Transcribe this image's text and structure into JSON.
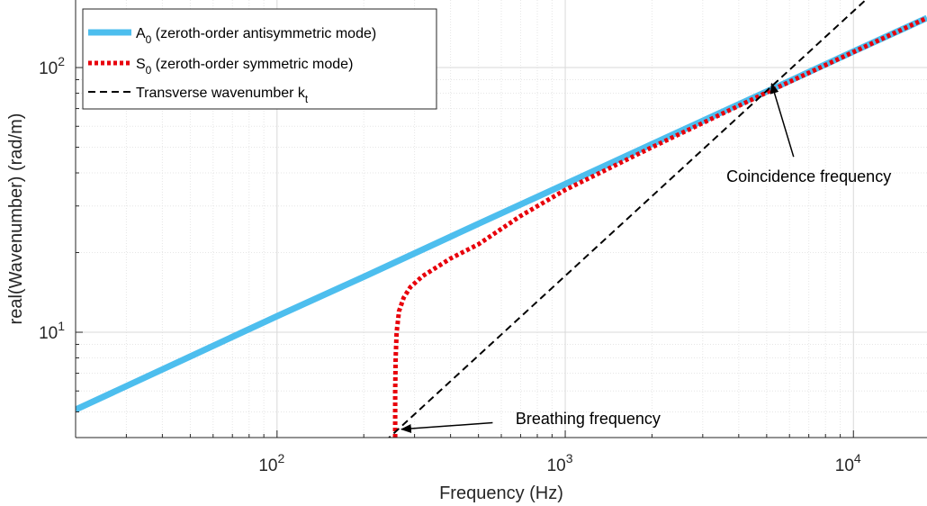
{
  "chart_data": {
    "type": "line",
    "xscale": "log",
    "yscale": "log",
    "xlim": [
      20,
      18000
    ],
    "ylim": [
      4,
      180
    ],
    "xlabel": "Frequency (Hz)",
    "ylabel": "real(Wavenumber) (rad/m)",
    "xticks": [
      {
        "value": 100,
        "base": "10",
        "exp": "2"
      },
      {
        "value": 1000,
        "base": "10",
        "exp": "3"
      },
      {
        "value": 10000,
        "base": "10",
        "exp": "4"
      }
    ],
    "yticks": [
      {
        "value": 10,
        "base": "10",
        "exp": "1"
      },
      {
        "value": 100,
        "base": "10",
        "exp": "2"
      }
    ],
    "grid": true,
    "minor_grid": true,
    "legend_position": "top-left",
    "series": [
      {
        "name_main": "A",
        "name_sub": "0",
        "name_rest": " (zeroth-order antisymmetric mode)",
        "color": "#4DBEEE",
        "style": "solid",
        "x": [
          20,
          50,
          100,
          200,
          500,
          1000,
          2000,
          5000,
          10000,
          18000
        ],
        "y": [
          5.1,
          8.1,
          11.5,
          16.2,
          25.7,
          36.3,
          51.4,
          81.2,
          115,
          154
        ]
      },
      {
        "name_main": "S",
        "name_sub": "0",
        "name_rest": " (zeroth-order symmetric mode)",
        "color": "#E8000B",
        "style": "dotted",
        "x": [
          257,
          257,
          258,
          260,
          265,
          275,
          290,
          320,
          400,
          500,
          700,
          1000,
          2000,
          5000,
          10000,
          18000
        ],
        "y": [
          4.0,
          6.0,
          8.0,
          10.0,
          12.0,
          13.5,
          14.8,
          16.3,
          19.0,
          21.5,
          27.5,
          34.5,
          50.0,
          80.5,
          114.5,
          154
        ]
      },
      {
        "name_main": "Transverse wavenumber k",
        "name_sub": "t",
        "name_rest": "",
        "color": "#000000",
        "style": "dashed",
        "x": [
          180,
          18000
        ],
        "y": [
          2.94,
          294
        ]
      }
    ],
    "annotations": [
      {
        "text": "Coincidence frequency",
        "target": [
          5200,
          87
        ],
        "label_at": [
          7000,
          37
        ],
        "arrow_from": [
          6200,
          46
        ]
      },
      {
        "text": "Breathing frequency",
        "target": [
          270,
          4.3
        ],
        "label_at": [
          1200,
          4.5
        ],
        "arrow_from": [
          560,
          4.55
        ]
      }
    ]
  }
}
